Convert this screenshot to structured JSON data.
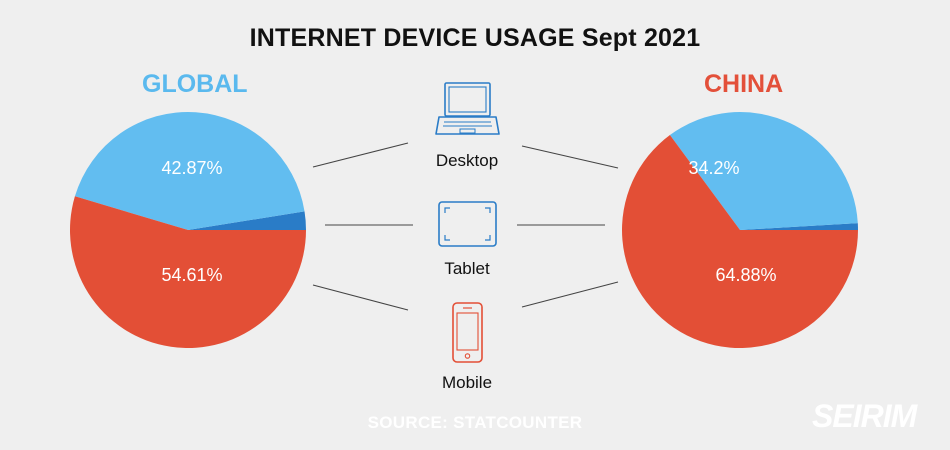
{
  "title": "INTERNET DEVICE USAGE Sept 2021",
  "source": "SOURCE: STATCOUNTER",
  "brand": "SEIRIM",
  "colors": {
    "global_label": "#5ab9ee",
    "china_label": "#e3503a",
    "desktop": "#62bdf0",
    "tablet": "#2a7cc7",
    "mobile": "#e34f36"
  },
  "icons": [
    "laptop-icon",
    "tablet-icon",
    "phone-icon"
  ],
  "chart_data": [
    {
      "type": "pie",
      "title": "GLOBAL",
      "categories": [
        "Desktop",
        "Tablet",
        "Mobile"
      ],
      "values": [
        42.87,
        2.52,
        54.61
      ],
      "labels": [
        "42.87%",
        "",
        "54.61%"
      ]
    },
    {
      "type": "pie",
      "title": "CHINA",
      "categories": [
        "Desktop",
        "Tablet",
        "Mobile"
      ],
      "values": [
        34.2,
        0.92,
        64.88
      ],
      "labels": [
        "34.2%",
        "",
        "64.88%"
      ]
    }
  ]
}
